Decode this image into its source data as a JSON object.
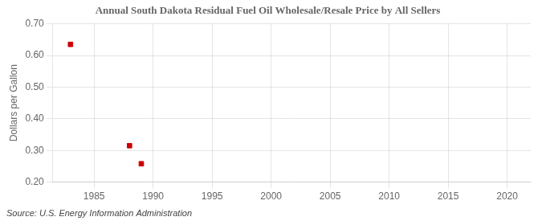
{
  "chart_data": {
    "type": "scatter",
    "title": "Annual South Dakota Residual Fuel Oil Wholesale/Resale Price by All Sellers",
    "ylabel": "Dollars per Gallon",
    "annotations": [
      "Source: U.S. Energy Information Administration"
    ],
    "x": [
      1983,
      1988,
      1989
    ],
    "values": [
      0.635,
      0.315,
      0.258
    ],
    "color": "#cc0000",
    "marker": "square",
    "xlim": [
      1981.5,
      2022
    ],
    "ylim": [
      0.2,
      0.7
    ],
    "xticks": [
      1985,
      1990,
      1995,
      2000,
      2005,
      2010,
      2015,
      2020
    ],
    "yticks": [
      {
        "value": 0.2,
        "label": "0.20"
      },
      {
        "value": 0.3,
        "label": "0.30"
      },
      {
        "value": 0.4,
        "label": "0.40"
      },
      {
        "value": 0.5,
        "label": "0.50"
      },
      {
        "value": 0.6,
        "label": "0.60"
      },
      {
        "value": 0.7,
        "label": "0.70"
      }
    ],
    "grid": true
  }
}
